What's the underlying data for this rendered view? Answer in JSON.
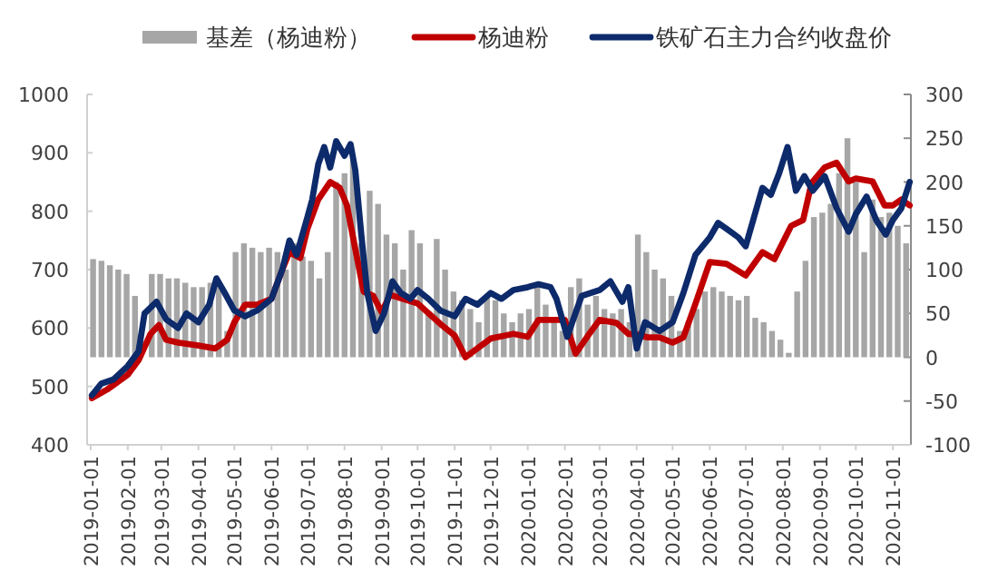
{
  "chart_data": {
    "type": "line",
    "legend": "top",
    "xlim": [
      "2018-12-29",
      "2020-11-16"
    ],
    "xticks": [
      "2019-01-01",
      "2019-02-01",
      "2019-03-01",
      "2019-04-01",
      "2019-05-01",
      "2019-06-01",
      "2019-07-01",
      "2019-08-01",
      "2019-09-01",
      "2019-10-01",
      "2019-11-01",
      "2019-12-01",
      "2020-01-01",
      "2020-02-01",
      "2020-03-01",
      "2020-04-01",
      "2020-05-01",
      "2020-06-01",
      "2020-07-01",
      "2020-08-01",
      "2020-09-01",
      "2020-10-01",
      "2020-11-01"
    ],
    "ylim": [
      400,
      1000
    ],
    "yticks": [
      400,
      500,
      600,
      700,
      800,
      900,
      1000
    ],
    "y2lim": [
      -100,
      300
    ],
    "y2ticks": [
      -100,
      -50,
      0,
      50,
      100,
      150,
      200,
      250,
      300
    ],
    "series": [
      {
        "name": "基差（杨迪粉）",
        "type": "bar",
        "axis": "y2",
        "color": "#a6a6a6",
        "x": [
          "2019-01-03",
          "2019-01-10",
          "2019-01-17",
          "2019-01-24",
          "2019-01-31",
          "2019-02-07",
          "2019-02-21",
          "2019-02-28",
          "2019-03-07",
          "2019-03-14",
          "2019-03-21",
          "2019-03-28",
          "2019-04-04",
          "2019-04-11",
          "2019-04-18",
          "2019-04-25",
          "2019-05-02",
          "2019-05-09",
          "2019-05-16",
          "2019-05-23",
          "2019-05-30",
          "2019-06-06",
          "2019-06-13",
          "2019-06-20",
          "2019-06-27",
          "2019-07-04",
          "2019-07-11",
          "2019-07-18",
          "2019-07-25",
          "2019-08-01",
          "2019-08-08",
          "2019-08-15",
          "2019-08-22",
          "2019-08-29",
          "2019-09-05",
          "2019-09-12",
          "2019-09-19",
          "2019-09-26",
          "2019-10-03",
          "2019-10-10",
          "2019-10-17",
          "2019-10-24",
          "2019-10-31",
          "2019-11-07",
          "2019-11-14",
          "2019-11-21",
          "2019-11-28",
          "2019-12-05",
          "2019-12-12",
          "2019-12-19",
          "2019-12-26",
          "2020-01-02",
          "2020-01-09",
          "2020-01-16",
          "2020-01-23",
          "2020-01-30",
          "2020-02-06",
          "2020-02-13",
          "2020-02-20",
          "2020-02-27",
          "2020-03-05",
          "2020-03-12",
          "2020-03-19",
          "2020-03-26",
          "2020-04-02",
          "2020-04-09",
          "2020-04-16",
          "2020-04-23",
          "2020-04-30",
          "2020-05-07",
          "2020-05-14",
          "2020-05-21",
          "2020-05-28",
          "2020-06-04",
          "2020-06-11",
          "2020-06-18",
          "2020-06-25",
          "2020-07-02",
          "2020-07-09",
          "2020-07-16",
          "2020-07-23",
          "2020-07-30",
          "2020-08-06",
          "2020-08-13",
          "2020-08-20",
          "2020-08-27",
          "2020-09-03",
          "2020-09-10",
          "2020-09-17",
          "2020-09-24",
          "2020-10-01",
          "2020-10-08",
          "2020-10-15",
          "2020-10-22",
          "2020-10-29",
          "2020-11-05",
          "2020-11-12"
        ],
        "values": [
          112,
          110,
          105,
          100,
          95,
          70,
          95,
          95,
          90,
          90,
          85,
          80,
          80,
          85,
          80,
          30,
          120,
          130,
          125,
          120,
          125,
          120,
          100,
          130,
          115,
          110,
          90,
          120,
          200,
          210,
          225,
          130,
          190,
          175,
          140,
          130,
          100,
          145,
          130,
          50,
          135,
          100,
          75,
          65,
          55,
          40,
          70,
          65,
          50,
          40,
          50,
          55,
          80,
          60,
          45,
          30,
          80,
          90,
          60,
          70,
          55,
          50,
          55,
          40,
          140,
          120,
          100,
          90,
          70,
          30,
          40,
          55,
          75,
          80,
          75,
          70,
          65,
          70,
          45,
          40,
          30,
          20,
          5,
          75,
          110,
          160,
          165,
          175,
          210,
          250,
          200,
          120,
          180,
          160,
          165,
          150,
          130
        ]
      },
      {
        "name": "杨迪粉",
        "color": "#c00000",
        "x": [
          "2019-01-02",
          "2019-01-15",
          "2019-02-01",
          "2019-02-10",
          "2019-02-20",
          "2019-02-27",
          "2019-03-05",
          "2019-03-15",
          "2019-04-01",
          "2019-04-15",
          "2019-04-25",
          "2019-05-01",
          "2019-05-10",
          "2019-05-20",
          "2019-06-01",
          "2019-06-10",
          "2019-06-16",
          "2019-06-25",
          "2019-07-01",
          "2019-07-10",
          "2019-07-20",
          "2019-07-28",
          "2019-08-03",
          "2019-08-10",
          "2019-08-17",
          "2019-08-25",
          "2019-09-01",
          "2019-09-08",
          "2019-10-01",
          "2019-10-20",
          "2019-11-01",
          "2019-11-10",
          "2019-12-01",
          "2019-12-20",
          "2020-01-01",
          "2020-01-10",
          "2020-02-01",
          "2020-02-10",
          "2020-02-20",
          "2020-03-01",
          "2020-03-15",
          "2020-03-25",
          "2020-04-01",
          "2020-04-10",
          "2020-04-20",
          "2020-05-01",
          "2020-05-10",
          "2020-05-20",
          "2020-06-01",
          "2020-06-15",
          "2020-07-01",
          "2020-07-15",
          "2020-07-25",
          "2020-08-08",
          "2020-08-18",
          "2020-08-25",
          "2020-09-05",
          "2020-09-15",
          "2020-09-25",
          "2020-10-01",
          "2020-10-15",
          "2020-10-25",
          "2020-11-01",
          "2020-11-08",
          "2020-11-15"
        ],
        "values": [
          480,
          495,
          520,
          545,
          590,
          605,
          580,
          575,
          570,
          565,
          580,
          610,
          640,
          640,
          650,
          700,
          730,
          720,
          770,
          820,
          850,
          840,
          810,
          735,
          662,
          655,
          627,
          657,
          642,
          607,
          587,
          550,
          582,
          590,
          585,
          614,
          614,
          556,
          586,
          614,
          609,
          590,
          589,
          584,
          584,
          575,
          584,
          641,
          713,
          710,
          690,
          730,
          718,
          775,
          785,
          848,
          875,
          883,
          851,
          856,
          851,
          810,
          810,
          820,
          810
        ]
      },
      {
        "name": "铁矿石主力合约收盘价",
        "color": "#0d2a6b",
        "x": [
          "2019-01-02",
          "2019-01-10",
          "2019-01-20",
          "2019-02-01",
          "2019-02-10",
          "2019-02-15",
          "2019-02-25",
          "2019-03-05",
          "2019-03-15",
          "2019-03-22",
          "2019-04-01",
          "2019-04-10",
          "2019-04-16",
          "2019-04-23",
          "2019-05-01",
          "2019-05-10",
          "2019-05-20",
          "2019-06-01",
          "2019-06-10",
          "2019-06-16",
          "2019-06-22",
          "2019-07-01",
          "2019-07-05",
          "2019-07-10",
          "2019-07-15",
          "2019-07-20",
          "2019-07-25",
          "2019-08-01",
          "2019-08-06",
          "2019-08-10",
          "2019-08-15",
          "2019-08-20",
          "2019-08-27",
          "2019-09-03",
          "2019-09-10",
          "2019-09-17",
          "2019-09-25",
          "2019-10-01",
          "2019-10-10",
          "2019-10-20",
          "2019-11-01",
          "2019-11-10",
          "2019-11-20",
          "2019-12-01",
          "2019-12-10",
          "2019-12-20",
          "2020-01-01",
          "2020-01-10",
          "2020-01-20",
          "2020-01-25",
          "2020-02-03",
          "2020-02-15",
          "2020-03-01",
          "2020-03-10",
          "2020-03-20",
          "2020-03-25",
          "2020-04-01",
          "2020-04-08",
          "2020-04-20",
          "2020-05-01",
          "2020-05-10",
          "2020-05-20",
          "2020-06-01",
          "2020-06-08",
          "2020-06-15",
          "2020-06-25",
          "2020-07-01",
          "2020-07-15",
          "2020-07-22",
          "2020-07-29",
          "2020-08-05",
          "2020-08-12",
          "2020-08-19",
          "2020-08-26",
          "2020-09-05",
          "2020-09-15",
          "2020-09-25",
          "2020-10-01",
          "2020-10-10",
          "2020-10-18",
          "2020-10-26",
          "2020-11-01",
          "2020-11-08",
          "2020-11-15"
        ],
        "values": [
          485,
          505,
          512,
          535,
          560,
          625,
          645,
          615,
          600,
          625,
          610,
          640,
          685,
          660,
          630,
          620,
          630,
          650,
          700,
          750,
          725,
          790,
          820,
          880,
          910,
          875,
          920,
          895,
          915,
          870,
          760,
          660,
          595,
          625,
          680,
          660,
          650,
          665,
          650,
          630,
          620,
          650,
          640,
          660,
          650,
          665,
          670,
          675,
          670,
          650,
          585,
          655,
          665,
          680,
          645,
          670,
          565,
          610,
          595,
          610,
          660,
          725,
          755,
          780,
          770,
          755,
          740,
          840,
          828,
          865,
          910,
          835,
          860,
          835,
          860,
          805,
          765,
          795,
          825,
          785,
          760,
          785,
          805,
          850
        ]
      }
    ]
  }
}
